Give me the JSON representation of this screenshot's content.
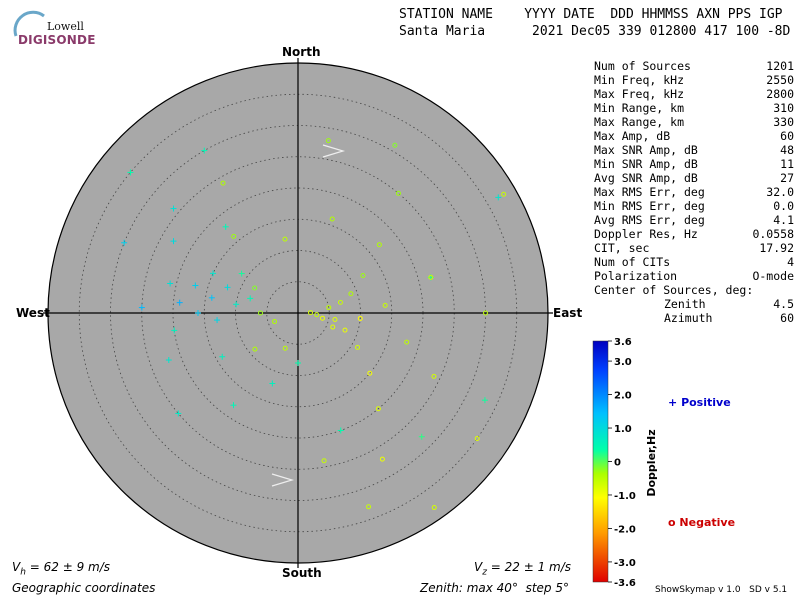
{
  "logo": {
    "line1": "Lowell",
    "line2": "DIGISONDE"
  },
  "header": {
    "columns": "STATION NAME    YYYY DATE  DDD HHMMSS AXN PPS IGP",
    "values": "Santa Maria      2021 Dec05 339 012800 417 100 -8D"
  },
  "stats": [
    {
      "label": "Num of Sources",
      "value": "1201"
    },
    {
      "label": "Min Freq, kHz",
      "value": "2550"
    },
    {
      "label": "Max Freq, kHz",
      "value": "2800"
    },
    {
      "label": "Min Range, km",
      "value": "310"
    },
    {
      "label": "Max Range, km",
      "value": "330"
    },
    {
      "label": "Max Amp, dB",
      "value": "60"
    },
    {
      "label": "Max SNR Amp, dB",
      "value": "48"
    },
    {
      "label": "Min SNR Amp, dB",
      "value": "11"
    },
    {
      "label": "Avg SNR Amp, dB",
      "value": "27"
    },
    {
      "label": "Max RMS Err, deg",
      "value": "32.0"
    },
    {
      "label": "Min RMS Err, deg",
      "value": "0.0"
    },
    {
      "label": "Avg RMS Err, deg",
      "value": "4.1"
    },
    {
      "label": "Doppler Res, Hz",
      "value": "0.0558"
    },
    {
      "label": "CIT, sec",
      "value": "17.92"
    },
    {
      "label": "Num of CITs",
      "value": "4"
    },
    {
      "label": "Polarization",
      "value": "O-mode"
    }
  ],
  "center": {
    "title": "Center of Sources, deg:",
    "zenith_label": "Zenith",
    "zenith_value": "4.5",
    "azimuth_label": "Azimuth",
    "azimuth_value": "60"
  },
  "directions": {
    "north": "North",
    "south": "South",
    "east": "East",
    "west": "West"
  },
  "colorbar": {
    "label": "Doppler,Hz",
    "ticks": [
      "3.6",
      "3.0",
      "2.0",
      "1.0",
      "0",
      "-1.0",
      "-2.0",
      "-3.0",
      "-3.6"
    ],
    "range": [
      -3.6,
      3.6
    ]
  },
  "legend": {
    "positive_label": "Positive",
    "negative_label": "Negative",
    "positive_symbol": "+",
    "negative_symbol": "o"
  },
  "footer": {
    "vh_sym": "V",
    "vh_sub": "h",
    "vh_text": " = 62 ± 9 m/s",
    "vz_sym": "V",
    "vz_sub": "z",
    "vz_text": " = 22 ± 1 m/s",
    "coords": "Geographic coordinates",
    "zenith": "Zenith: max 40°  step 5°"
  },
  "version": "ShowSkymap v 1.0   SD v 5.1",
  "colors": {
    "disk": "#a8a8a8",
    "positive": "#0000cc",
    "negative": "#cc0000",
    "logo": "#8a3a6a"
  },
  "chart_data": {
    "type": "scatter",
    "coordinate_system": "polar skymap (azimuth deg from North clockwise, zenith deg)",
    "zenith_max_deg": 40,
    "zenith_step_deg": 5,
    "color_variable": "Doppler, Hz",
    "series": [
      {
        "name": "Positive",
        "marker": "+",
        "points": [
          {
            "az": 280,
            "zen": 14,
            "doppler": 1.4
          },
          {
            "az": 285,
            "zen": 17,
            "doppler": 1.2
          },
          {
            "az": 275,
            "zen": 19,
            "doppler": 1.6
          },
          {
            "az": 290,
            "zen": 12,
            "doppler": 1.0
          },
          {
            "az": 270,
            "zen": 16,
            "doppler": 1.3
          },
          {
            "az": 283,
            "zen": 21,
            "doppler": 0.9
          },
          {
            "az": 278,
            "zen": 10,
            "doppler": 0.7
          },
          {
            "az": 295,
            "zen": 15,
            "doppler": 0.8
          },
          {
            "az": 265,
            "zen": 13,
            "doppler": 1.1
          },
          {
            "az": 287,
            "zen": 8,
            "doppler": 0.5
          },
          {
            "az": 300,
            "zen": 23,
            "doppler": 1.0
          },
          {
            "az": 262,
            "zen": 20,
            "doppler": 0.6
          },
          {
            "az": 292,
            "zen": 30,
            "doppler": 1.2
          },
          {
            "az": 310,
            "zen": 35,
            "doppler": 0.4
          },
          {
            "az": 250,
            "zen": 22,
            "doppler": 0.8
          },
          {
            "az": 320,
            "zen": 18,
            "doppler": 0.5
          },
          {
            "az": 305,
            "zen": 11,
            "doppler": 0.3
          },
          {
            "az": 272,
            "zen": 25,
            "doppler": 1.5
          },
          {
            "az": 240,
            "zen": 14,
            "doppler": 0.6
          },
          {
            "az": 310,
            "zen": 26,
            "doppler": 0.9
          },
          {
            "az": 60,
            "zen": 37,
            "doppler": 0.8
          },
          {
            "az": 135,
            "zen": 28,
            "doppler": 0.2
          },
          {
            "az": 160,
            "zen": 20,
            "doppler": 0.4
          },
          {
            "az": 200,
            "zen": 12,
            "doppler": 0.6
          },
          {
            "az": 230,
            "zen": 25,
            "doppler": 0.7
          },
          {
            "az": 330,
            "zen": 30,
            "doppler": 0.5
          },
          {
            "az": 115,
            "zen": 33,
            "doppler": 0.3
          },
          {
            "az": 75,
            "zen": 22,
            "doppler": 0.2
          },
          {
            "az": 180,
            "zen": 8,
            "doppler": 0.4
          },
          {
            "az": 215,
            "zen": 18,
            "doppler": 0.5
          }
        ]
      },
      {
        "name": "Negative",
        "marker": "o",
        "points": [
          {
            "az": 95,
            "zen": 3,
            "doppler": -0.6
          },
          {
            "az": 100,
            "zen": 6,
            "doppler": -0.8
          },
          {
            "az": 80,
            "zen": 5,
            "doppler": -0.5
          },
          {
            "az": 110,
            "zen": 8,
            "doppler": -0.9
          },
          {
            "az": 70,
            "zen": 9,
            "doppler": -0.4
          },
          {
            "az": 120,
            "zen": 11,
            "doppler": -0.7
          },
          {
            "az": 60,
            "zen": 12,
            "doppler": -0.3
          },
          {
            "az": 130,
            "zen": 15,
            "doppler": -1.0
          },
          {
            "az": 85,
            "zen": 14,
            "doppler": -0.6
          },
          {
            "az": 105,
            "zen": 18,
            "doppler": -0.5
          },
          {
            "az": 50,
            "zen": 17,
            "doppler": -0.4
          },
          {
            "az": 140,
            "zen": 20,
            "doppler": -0.8
          },
          {
            "az": 75,
            "zen": 22,
            "doppler": -0.6
          },
          {
            "az": 115,
            "zen": 24,
            "doppler": -0.7
          },
          {
            "az": 150,
            "zen": 27,
            "doppler": -0.9
          },
          {
            "az": 40,
            "zen": 25,
            "doppler": -0.3
          },
          {
            "az": 90,
            "zen": 30,
            "doppler": -0.5
          },
          {
            "az": 160,
            "zen": 33,
            "doppler": -0.6
          },
          {
            "az": 30,
            "zen": 31,
            "doppler": -0.2
          },
          {
            "az": 125,
            "zen": 35,
            "doppler": -0.8
          },
          {
            "az": 330,
            "zen": 24,
            "doppler": -0.4
          },
          {
            "az": 10,
            "zen": 28,
            "doppler": -0.3
          },
          {
            "az": 350,
            "zen": 12,
            "doppler": -0.5
          },
          {
            "az": 20,
            "zen": 16,
            "doppler": -0.4
          },
          {
            "az": 300,
            "zen": 8,
            "doppler": -0.2
          },
          {
            "az": 320,
            "zen": 16,
            "doppler": -0.3
          },
          {
            "az": 60,
            "zen": 38,
            "doppler": -0.6
          },
          {
            "az": 145,
            "zen": 38,
            "doppler": -0.7
          },
          {
            "az": 170,
            "zen": 24,
            "doppler": -0.6
          },
          {
            "az": 95,
            "zen": 10,
            "doppler": -1.1
          },
          {
            "az": 88,
            "zen": 2,
            "doppler": -0.7
          },
          {
            "az": 102,
            "zen": 4,
            "doppler": -0.9
          },
          {
            "az": 76,
            "zen": 7,
            "doppler": -0.6
          },
          {
            "az": 112,
            "zen": 6,
            "doppler": -0.8
          },
          {
            "az": 250,
            "zen": 4,
            "doppler": -0.4
          },
          {
            "az": 270,
            "zen": 6,
            "doppler": -0.3
          },
          {
            "az": 200,
            "zen": 6,
            "doppler": -0.5
          },
          {
            "az": 230,
            "zen": 9,
            "doppler": -0.4
          }
        ]
      }
    ],
    "velocity_arrows_deg_az": [
      82,
      100
    ]
  }
}
